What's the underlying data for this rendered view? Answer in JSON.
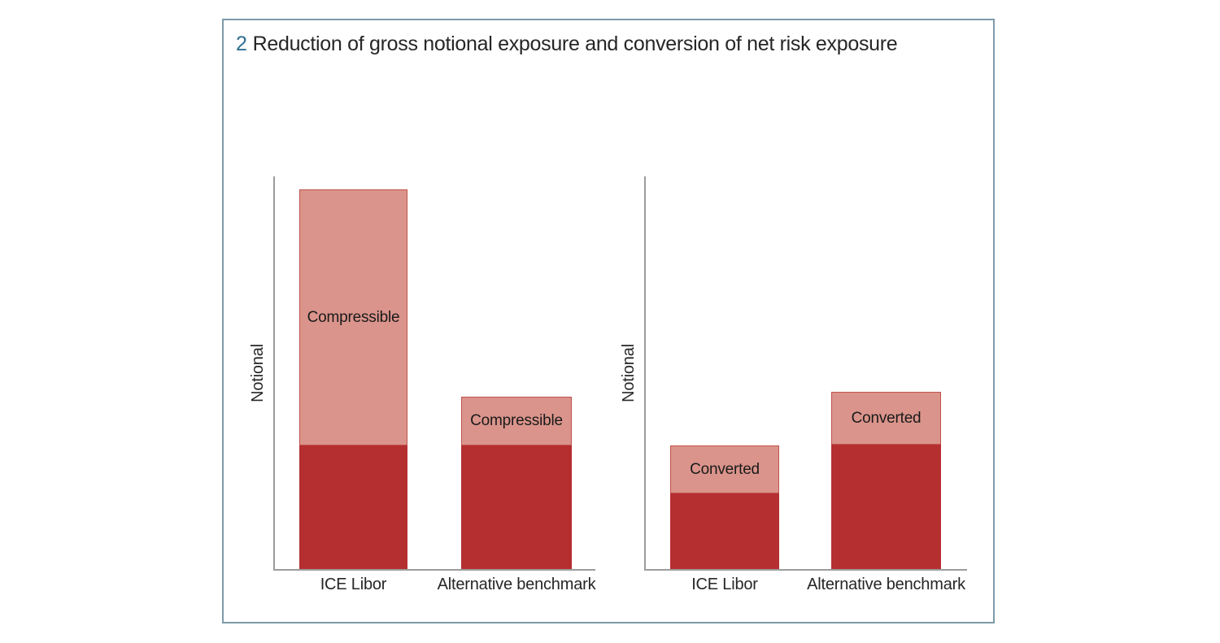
{
  "figure": {
    "number": "2",
    "title": "Reduction of gross notional exposure and conversion of net risk exposure"
  },
  "colors": {
    "figure_number": "#2f6f90",
    "frame_border": "#7e9aab",
    "bar_dark_red": "#b52f31",
    "bar_light_pink": "#da948b",
    "bar_outline": "#c0524c",
    "axis_line": "#9c9c9c",
    "text": "#262626"
  },
  "chart_data": [
    {
      "type": "bar",
      "stacked": true,
      "panel": "left",
      "title": "",
      "ylabel": "Notional",
      "xlabel": "",
      "categories": [
        "ICE Libor",
        "Alternative benchmark"
      ],
      "series": [
        {
          "label": "",
          "color_key": "bar_dark_red",
          "values": [
            31.4,
            31.4
          ]
        },
        {
          "label": "Compressible",
          "color_key": "bar_light_pink",
          "values": [
            65.3,
            12.4
          ]
        }
      ],
      "ylim": [
        0,
        100
      ],
      "grid": false,
      "tick_labels": "none",
      "legend": "none"
    },
    {
      "type": "bar",
      "stacked": true,
      "panel": "right",
      "title": "",
      "ylabel": "Notional",
      "xlabel": "",
      "categories": [
        "ICE Libor",
        "Alternative benchmark"
      ],
      "series": [
        {
          "label": "",
          "color_key": "bar_dark_red",
          "values": [
            19.2,
            31.6
          ]
        },
        {
          "label": "Converted",
          "color_key": "bar_light_pink",
          "values": [
            12.2,
            13.4
          ]
        }
      ],
      "ylim": [
        0,
        100
      ],
      "grid": false,
      "tick_labels": "none",
      "legend": "none"
    }
  ]
}
